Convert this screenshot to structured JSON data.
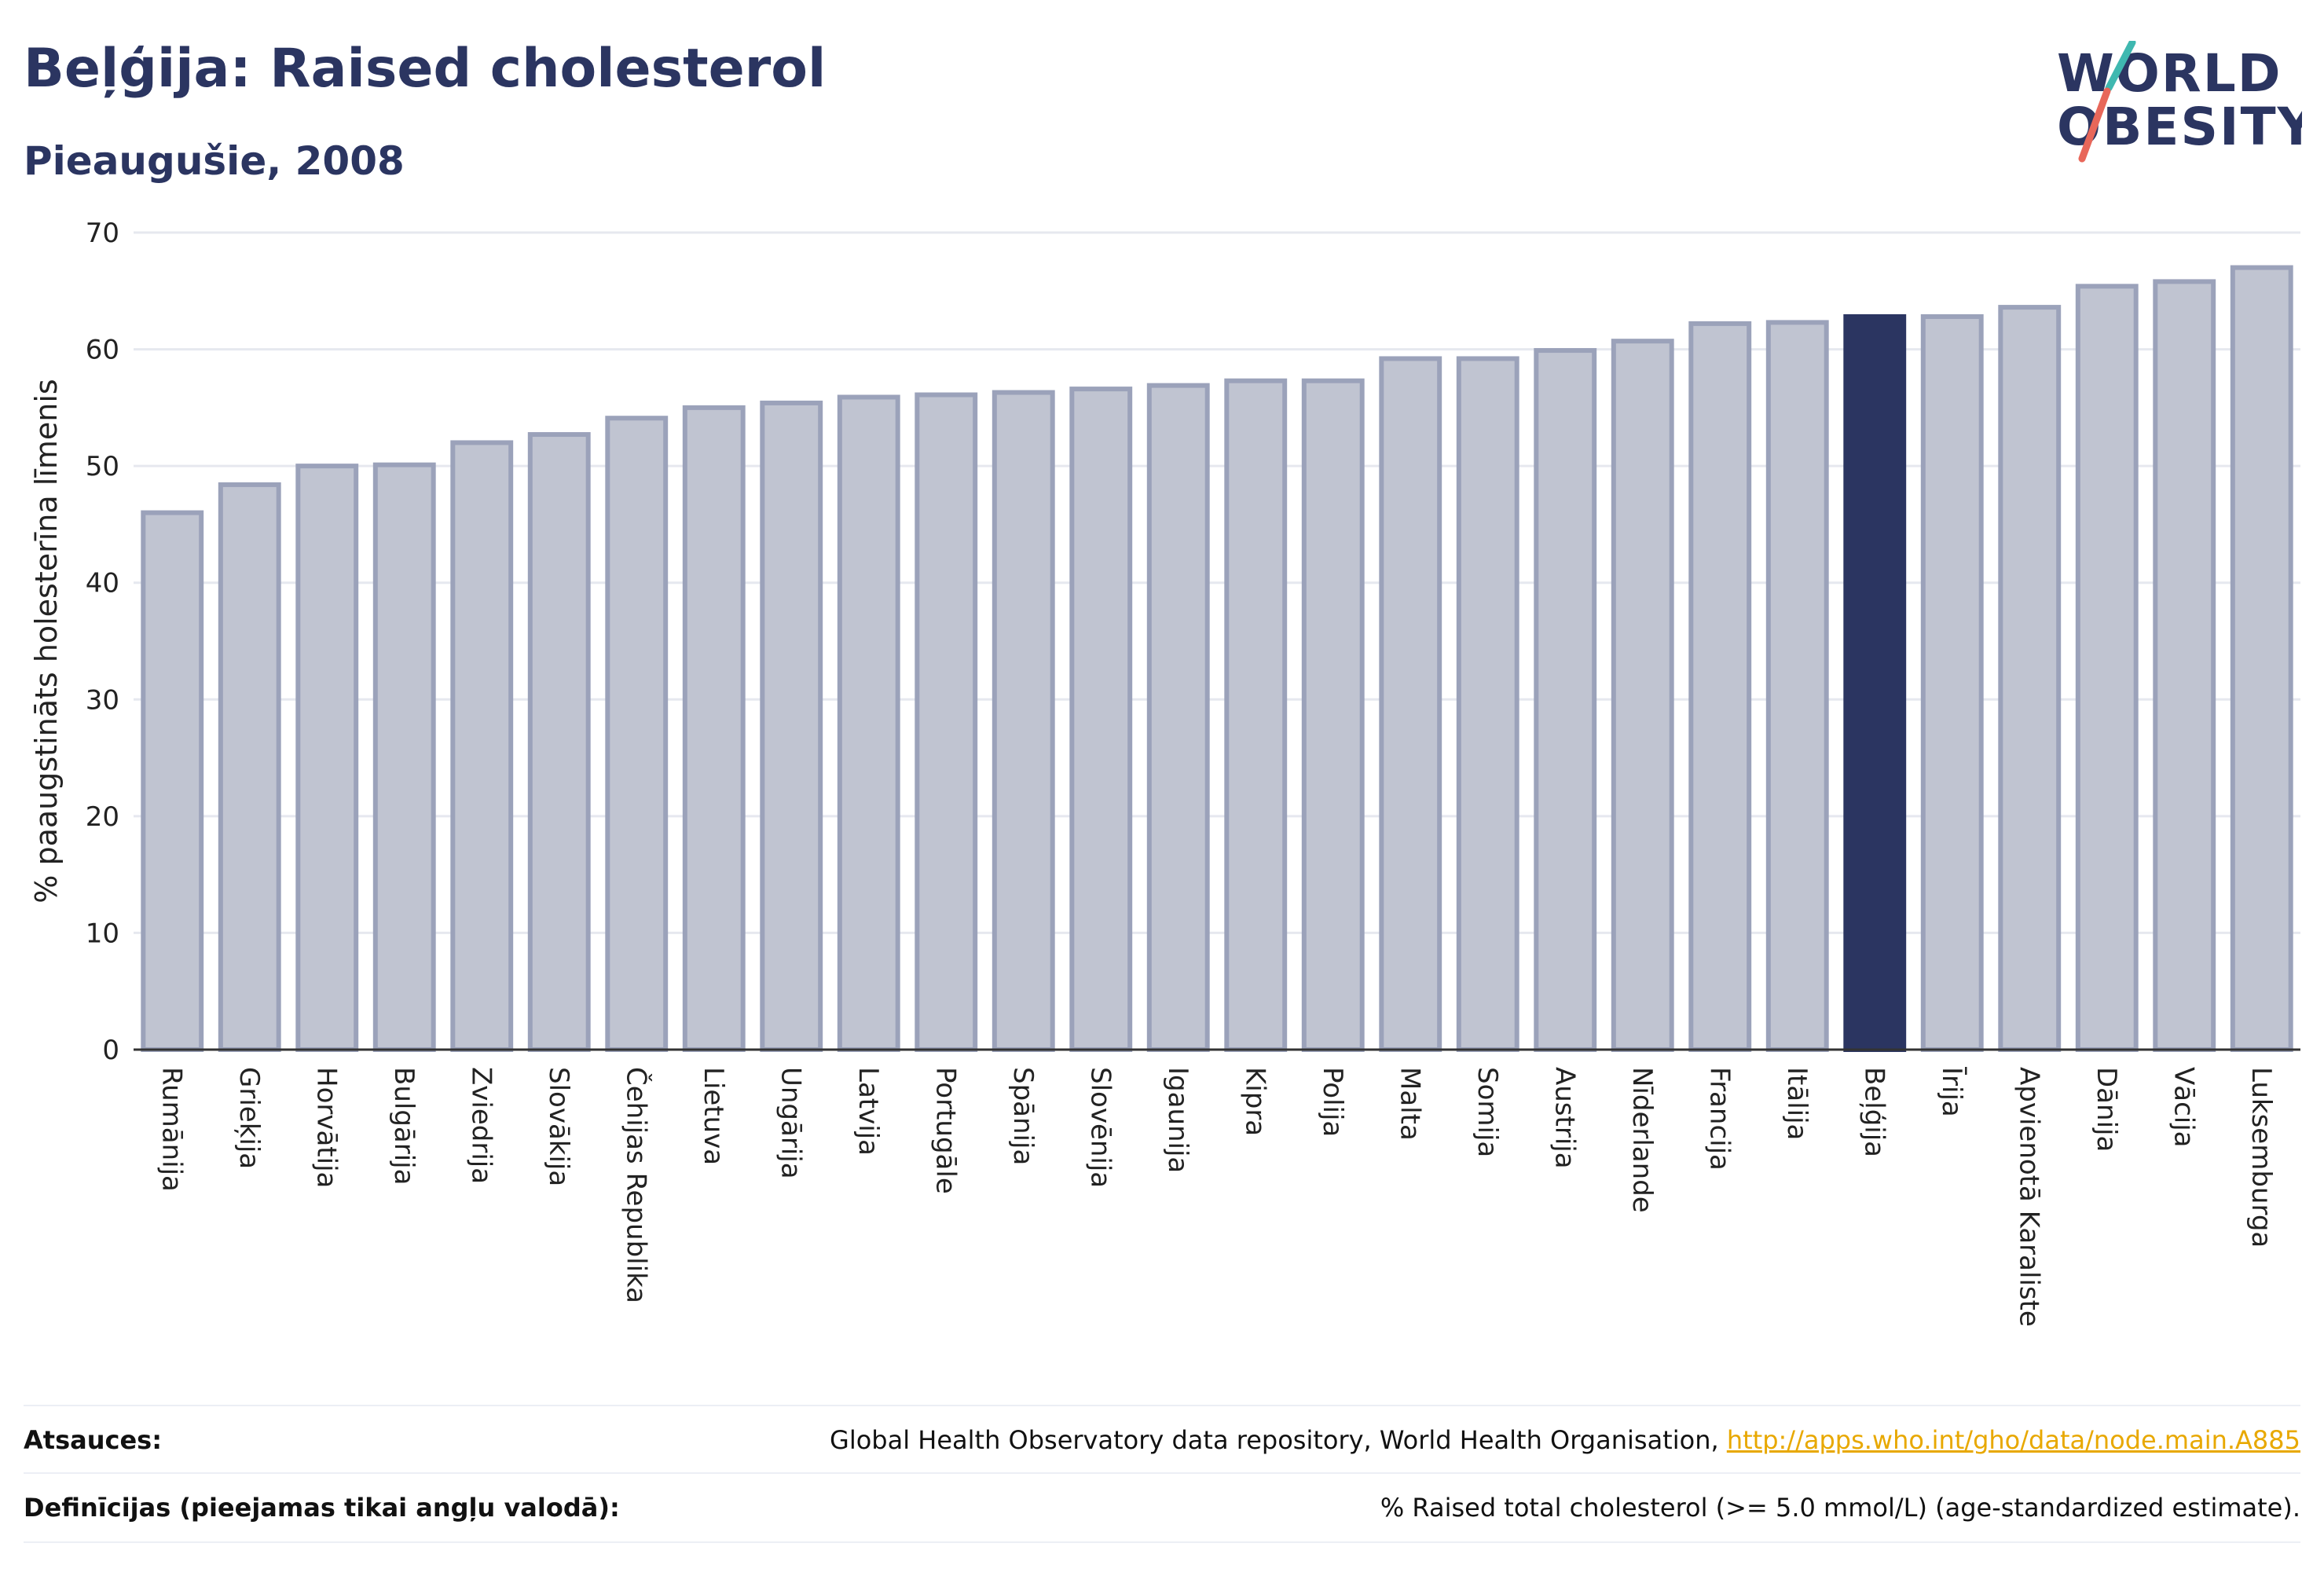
{
  "header": {
    "title": "Beļģija: Raised cholesterol",
    "subtitle": "Pieaugušie, 2008"
  },
  "logo": {
    "line1": "WORLD",
    "line2": "OBESITY",
    "colors": {
      "text": "#2b3561",
      "slash_top": "#3fb8b0",
      "slash_bottom": "#e8675a"
    }
  },
  "chart_data": {
    "type": "bar",
    "title": "",
    "xlabel": "",
    "ylabel": "% paaugstināts holesterīna līmenis",
    "ylim": [
      0,
      70
    ],
    "yticks": [
      0,
      10,
      20,
      30,
      40,
      50,
      60,
      70
    ],
    "grid": true,
    "highlight": "Beļģija",
    "colors": {
      "bar": "#c0c4d1",
      "bar_edge": "#9ba2ba",
      "highlight": "#2b3561",
      "axis": "#333333",
      "grid": "#e6e8ef"
    },
    "categories": [
      "Rumānija",
      "Grieķija",
      "Horvātija",
      "Bulgārija",
      "Zviedrija",
      "Slovākija",
      "Čehijas Republika",
      "Lietuva",
      "Ungārija",
      "Latvija",
      "Portugāle",
      "Spānija",
      "Slovēnija",
      "Igaunija",
      "Kipra",
      "Polija",
      "Malta",
      "Somija",
      "Austrija",
      "Nīderlande",
      "Francija",
      "Itālija",
      "Beļģija",
      "Īrija",
      "Apvienotā Karaliste",
      "Dānija",
      "Vācija",
      "Luksemburga"
    ],
    "values": [
      46.0,
      48.4,
      50.0,
      50.1,
      52.0,
      52.7,
      54.1,
      55.0,
      55.4,
      55.9,
      56.1,
      56.3,
      56.6,
      56.9,
      57.3,
      57.3,
      59.2,
      59.2,
      59.9,
      60.7,
      62.2,
      62.3,
      62.8,
      62.8,
      63.6,
      65.4,
      65.8,
      67.0
    ]
  },
  "footer": {
    "sources_label": "Atsauces:",
    "sources_text": "Global Health Observatory data repository, World Health Organisation, ",
    "sources_link": "http://apps.who.int/gho/data/node.main.A885",
    "definitions_label": "Definīcijas (pieejamas tikai angļu valodā):",
    "definitions_text": "% Raised total cholesterol (>= 5.0 mmol/L) (age-standardized estimate)."
  }
}
